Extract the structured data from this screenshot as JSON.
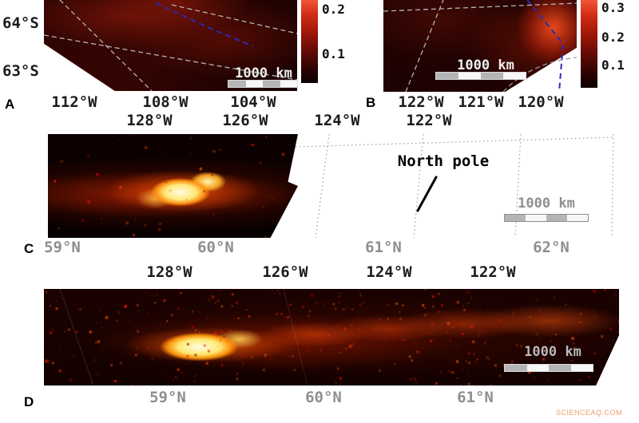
{
  "figure": {
    "panels": {
      "a": {
        "label": "A",
        "y_ticks": [
          "64°S",
          "63°S"
        ],
        "x_ticks": [
          "112°W",
          "108°W",
          "104°W"
        ],
        "colorbar_ticks": [
          "0.2",
          "0.1"
        ],
        "scale_bar": "1000 km"
      },
      "b": {
        "label": "B",
        "x_ticks": [
          "122°W",
          "121°W",
          "120°W"
        ],
        "colorbar_ticks": [
          "0.3",
          "0.2",
          "0.1"
        ],
        "scale_bar": "1000 km"
      },
      "c": {
        "label": "C",
        "top_ticks": [
          "128°W",
          "126°W",
          "124°W",
          "122°W"
        ],
        "bottom_ticks": [
          "59°N",
          "60°N",
          "61°N",
          "62°N"
        ],
        "annotation": "North pole",
        "scale_bar": "1000 km"
      },
      "d": {
        "label": "D",
        "top_ticks": [
          "128°W",
          "126°W",
          "124°W",
          "122°W"
        ],
        "bottom_ticks": [
          "59°N",
          "60°N",
          "61°N"
        ],
        "scale_bar": "1000 km"
      }
    },
    "watermark": "SCIENCEAQ.COM",
    "colors": {
      "heat_core": "#fffce2",
      "heat_mid": "#ff8000",
      "heat_outer": "#8c1200",
      "track_blue": "#2a2ab8",
      "grid_gray": "#b5b5b5",
      "tick_gray": "#8f8f8f"
    }
  }
}
